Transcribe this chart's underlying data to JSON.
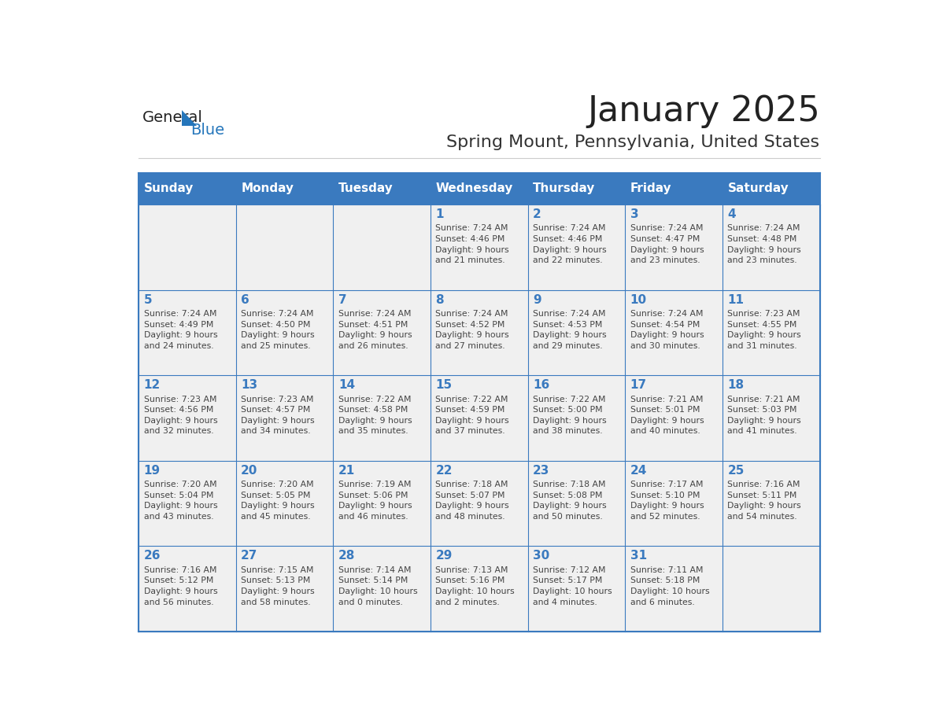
{
  "title": "January 2025",
  "subtitle": "Spring Mount, Pennsylvania, United States",
  "days_of_week": [
    "Sunday",
    "Monday",
    "Tuesday",
    "Wednesday",
    "Thursday",
    "Friday",
    "Saturday"
  ],
  "header_bg": "#3a7abf",
  "header_text": "#ffffff",
  "cell_bg_light": "#f0f0f0",
  "cell_bg_white": "#ffffff",
  "border_color": "#3a7abf",
  "day_num_color": "#3a7abf",
  "cell_text_color": "#444444",
  "title_color": "#222222",
  "subtitle_color": "#333333",
  "logo_general_color": "#222222",
  "logo_blue_color": "#2576bb",
  "weeks": [
    [
      {
        "day": null,
        "text": ""
      },
      {
        "day": null,
        "text": ""
      },
      {
        "day": null,
        "text": ""
      },
      {
        "day": 1,
        "text": "Sunrise: 7:24 AM\nSunset: 4:46 PM\nDaylight: 9 hours\nand 21 minutes."
      },
      {
        "day": 2,
        "text": "Sunrise: 7:24 AM\nSunset: 4:46 PM\nDaylight: 9 hours\nand 22 minutes."
      },
      {
        "day": 3,
        "text": "Sunrise: 7:24 AM\nSunset: 4:47 PM\nDaylight: 9 hours\nand 23 minutes."
      },
      {
        "day": 4,
        "text": "Sunrise: 7:24 AM\nSunset: 4:48 PM\nDaylight: 9 hours\nand 23 minutes."
      }
    ],
    [
      {
        "day": 5,
        "text": "Sunrise: 7:24 AM\nSunset: 4:49 PM\nDaylight: 9 hours\nand 24 minutes."
      },
      {
        "day": 6,
        "text": "Sunrise: 7:24 AM\nSunset: 4:50 PM\nDaylight: 9 hours\nand 25 minutes."
      },
      {
        "day": 7,
        "text": "Sunrise: 7:24 AM\nSunset: 4:51 PM\nDaylight: 9 hours\nand 26 minutes."
      },
      {
        "day": 8,
        "text": "Sunrise: 7:24 AM\nSunset: 4:52 PM\nDaylight: 9 hours\nand 27 minutes."
      },
      {
        "day": 9,
        "text": "Sunrise: 7:24 AM\nSunset: 4:53 PM\nDaylight: 9 hours\nand 29 minutes."
      },
      {
        "day": 10,
        "text": "Sunrise: 7:24 AM\nSunset: 4:54 PM\nDaylight: 9 hours\nand 30 minutes."
      },
      {
        "day": 11,
        "text": "Sunrise: 7:23 AM\nSunset: 4:55 PM\nDaylight: 9 hours\nand 31 minutes."
      }
    ],
    [
      {
        "day": 12,
        "text": "Sunrise: 7:23 AM\nSunset: 4:56 PM\nDaylight: 9 hours\nand 32 minutes."
      },
      {
        "day": 13,
        "text": "Sunrise: 7:23 AM\nSunset: 4:57 PM\nDaylight: 9 hours\nand 34 minutes."
      },
      {
        "day": 14,
        "text": "Sunrise: 7:22 AM\nSunset: 4:58 PM\nDaylight: 9 hours\nand 35 minutes."
      },
      {
        "day": 15,
        "text": "Sunrise: 7:22 AM\nSunset: 4:59 PM\nDaylight: 9 hours\nand 37 minutes."
      },
      {
        "day": 16,
        "text": "Sunrise: 7:22 AM\nSunset: 5:00 PM\nDaylight: 9 hours\nand 38 minutes."
      },
      {
        "day": 17,
        "text": "Sunrise: 7:21 AM\nSunset: 5:01 PM\nDaylight: 9 hours\nand 40 minutes."
      },
      {
        "day": 18,
        "text": "Sunrise: 7:21 AM\nSunset: 5:03 PM\nDaylight: 9 hours\nand 41 minutes."
      }
    ],
    [
      {
        "day": 19,
        "text": "Sunrise: 7:20 AM\nSunset: 5:04 PM\nDaylight: 9 hours\nand 43 minutes."
      },
      {
        "day": 20,
        "text": "Sunrise: 7:20 AM\nSunset: 5:05 PM\nDaylight: 9 hours\nand 45 minutes."
      },
      {
        "day": 21,
        "text": "Sunrise: 7:19 AM\nSunset: 5:06 PM\nDaylight: 9 hours\nand 46 minutes."
      },
      {
        "day": 22,
        "text": "Sunrise: 7:18 AM\nSunset: 5:07 PM\nDaylight: 9 hours\nand 48 minutes."
      },
      {
        "day": 23,
        "text": "Sunrise: 7:18 AM\nSunset: 5:08 PM\nDaylight: 9 hours\nand 50 minutes."
      },
      {
        "day": 24,
        "text": "Sunrise: 7:17 AM\nSunset: 5:10 PM\nDaylight: 9 hours\nand 52 minutes."
      },
      {
        "day": 25,
        "text": "Sunrise: 7:16 AM\nSunset: 5:11 PM\nDaylight: 9 hours\nand 54 minutes."
      }
    ],
    [
      {
        "day": 26,
        "text": "Sunrise: 7:16 AM\nSunset: 5:12 PM\nDaylight: 9 hours\nand 56 minutes."
      },
      {
        "day": 27,
        "text": "Sunrise: 7:15 AM\nSunset: 5:13 PM\nDaylight: 9 hours\nand 58 minutes."
      },
      {
        "day": 28,
        "text": "Sunrise: 7:14 AM\nSunset: 5:14 PM\nDaylight: 10 hours\nand 0 minutes."
      },
      {
        "day": 29,
        "text": "Sunrise: 7:13 AM\nSunset: 5:16 PM\nDaylight: 10 hours\nand 2 minutes."
      },
      {
        "day": 30,
        "text": "Sunrise: 7:12 AM\nSunset: 5:17 PM\nDaylight: 10 hours\nand 4 minutes."
      },
      {
        "day": 31,
        "text": "Sunrise: 7:11 AM\nSunset: 5:18 PM\nDaylight: 10 hours\nand 6 minutes."
      },
      {
        "day": null,
        "text": ""
      }
    ]
  ]
}
